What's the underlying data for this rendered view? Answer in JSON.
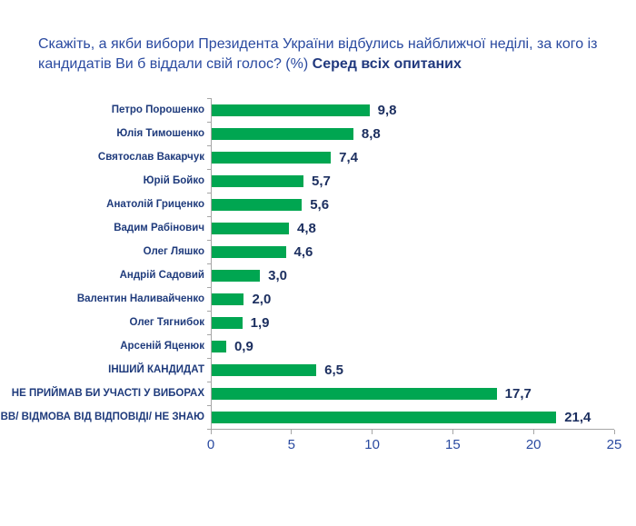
{
  "title": {
    "question": "Скажіть, а якби вибори Президента України відбулись найближчої неділі, за кого із кандидатів Ви б віддали свій голос? (%)",
    "emphasis": "Серед всіх опитаних"
  },
  "colors": {
    "bar": "#00A651",
    "title_text": "#2A4AA0",
    "category_text": "#1F3B7C",
    "value_text": "#1B2E5F",
    "axis_line": "#A6A6A6"
  },
  "chart_data": {
    "type": "bar",
    "orientation": "horizontal",
    "title": "Скажіть, а якби вибори Президента України відбулись найближчої неділі, за кого із кандидатів Ви б віддали свій голос? (%) Серед всіх опитаних",
    "categories": [
      "Петро Порошенко",
      "Юлія Тимошенко",
      "Святослав Вакарчук",
      "Юрій Бойко",
      "Анатолій Гриценко",
      "Вадим Рабінович",
      "Олег Ляшко",
      "Андрій Садовий",
      "Валентин Наливайченко",
      "Олег Тягнибок",
      "Арсеній Яценюк",
      "ІНШИЙ КАНДИДАТ",
      "НЕ ПРИЙМАВ БИ УЧАСТІ У ВИБОРАХ",
      "ВВ/ ВІДМОВА ВІД ВІДПОВІДІ/ НЕ ЗНАЮ"
    ],
    "values": [
      9.8,
      8.8,
      7.4,
      5.7,
      5.6,
      4.8,
      4.6,
      3.0,
      2.0,
      1.9,
      0.9,
      6.5,
      17.7,
      21.4
    ],
    "value_labels": [
      "9,8",
      "8,8",
      "7,4",
      "5,7",
      "5,6",
      "4,8",
      "4,6",
      "3,0",
      "2,0",
      "1,9",
      "0,9",
      "6,5",
      "17,7",
      "21,4"
    ],
    "xlabel": "",
    "ylabel": "",
    "xlim": [
      0,
      25
    ],
    "x_ticks": [
      0,
      5,
      10,
      15,
      20,
      25
    ],
    "grid": false,
    "legend": false
  }
}
